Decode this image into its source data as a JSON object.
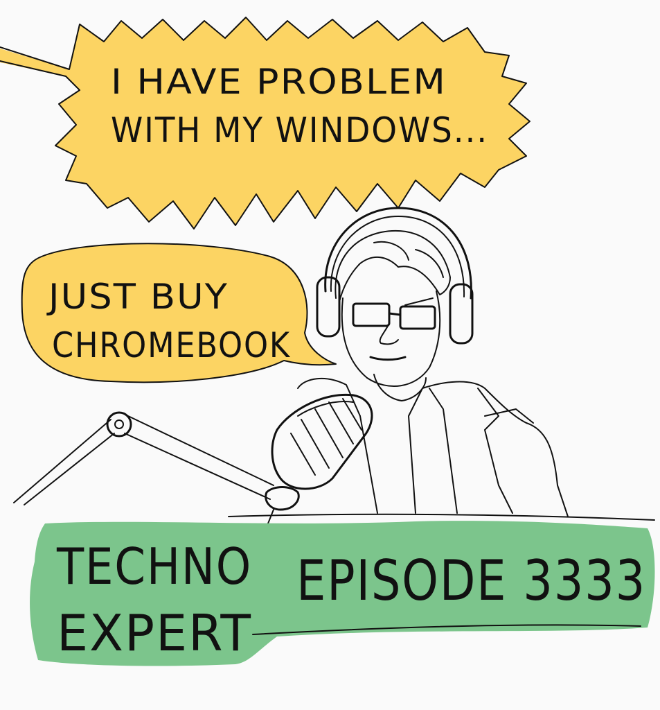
{
  "colors": {
    "background": "#fafafa",
    "yellow_bubble": "#fcd463",
    "green_banner": "#7cc58c",
    "ink": "#111111"
  },
  "speech_bubble_top": {
    "line1": "I HAVE PROBLEM",
    "line2": "WITH MY WINDOWS..."
  },
  "speech_bubble_host": {
    "line1": "JUST BUY",
    "line2": "CHROMEBOOK"
  },
  "banner": {
    "show_name_line1": "TECHNO",
    "show_name_line2": "EXPERT",
    "episode": "EPISODE 3333"
  }
}
